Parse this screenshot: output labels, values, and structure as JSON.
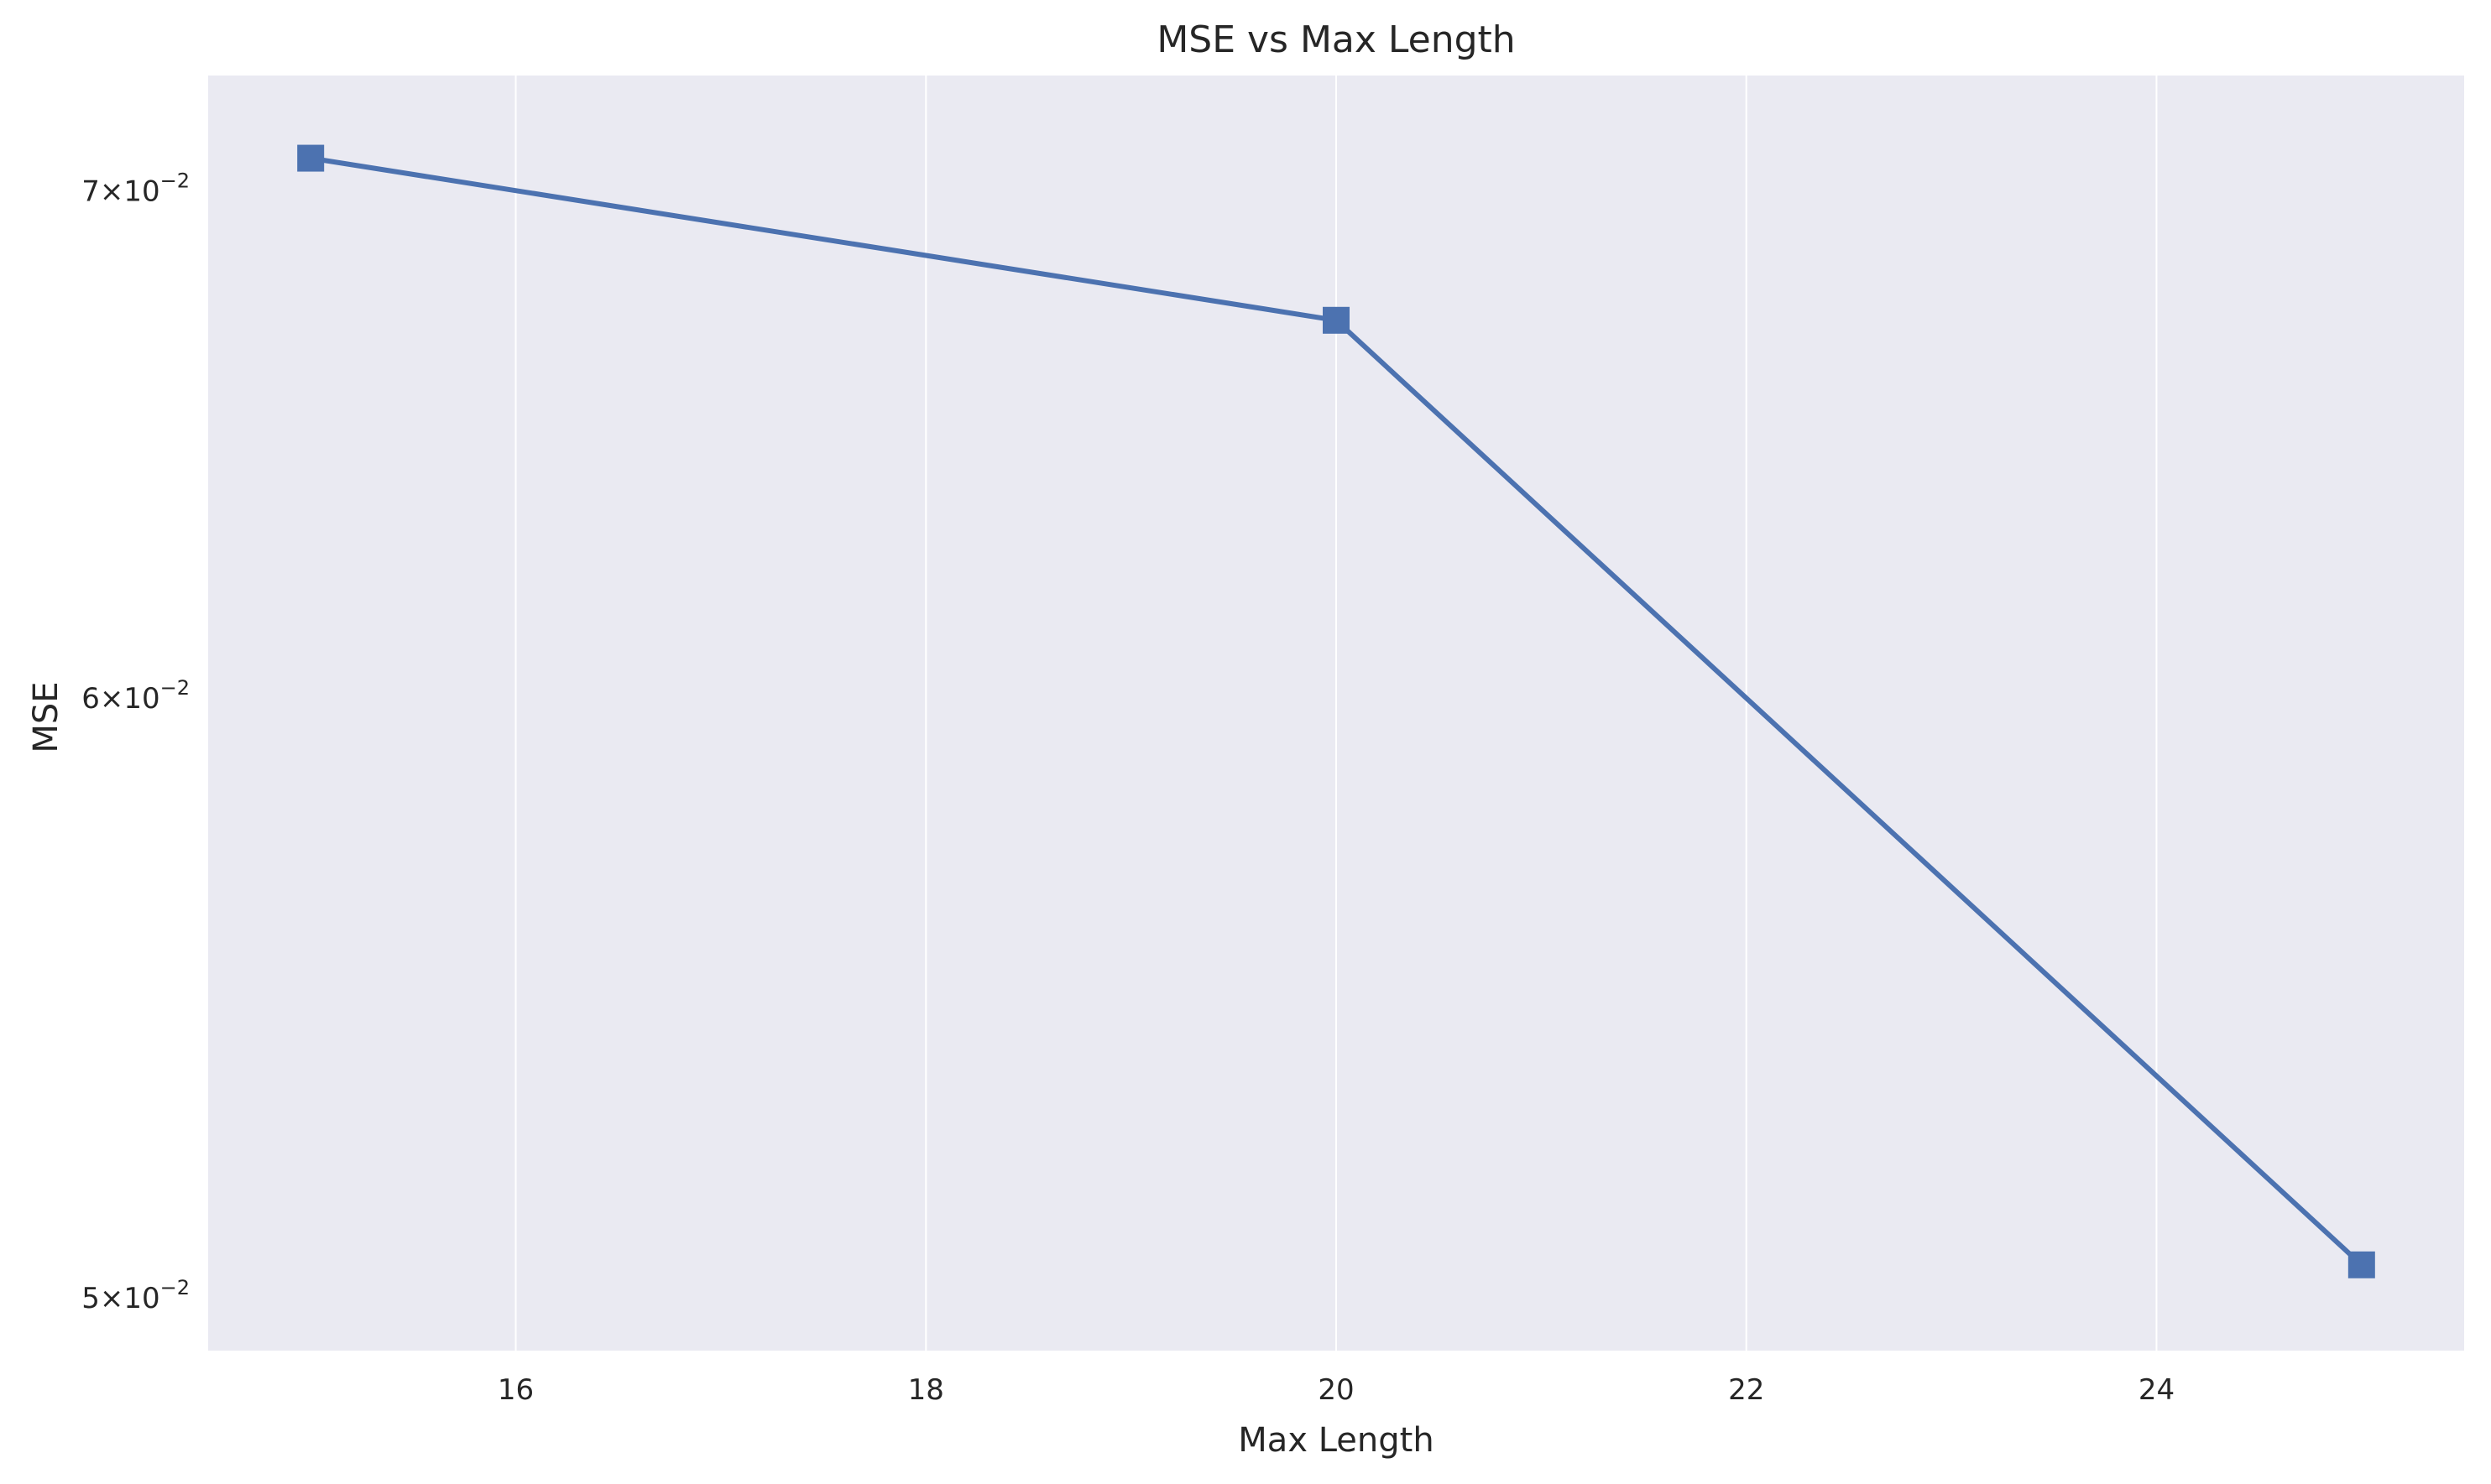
{
  "chart_data": {
    "type": "line",
    "title": "MSE vs Max Length",
    "xlabel": "Max Length",
    "ylabel": "MSE",
    "x_scale": "linear",
    "y_scale": "log",
    "xlim": [
      14.5,
      25.5
    ],
    "ylim": [
      0.0492,
      0.0725
    ],
    "grid": true,
    "legend": "none",
    "x_ticks": [
      {
        "value": 16,
        "label": "16"
      },
      {
        "value": 18,
        "label": "18"
      },
      {
        "value": 20,
        "label": "20"
      },
      {
        "value": 22,
        "label": "22"
      },
      {
        "value": 24,
        "label": "24"
      }
    ],
    "y_ticks": [
      {
        "value": 0.05,
        "mantissa": "5",
        "times": "×",
        "base": "10",
        "exponent": "−2"
      },
      {
        "value": 0.06,
        "mantissa": "6",
        "times": "×",
        "base": "10",
        "exponent": "−2"
      },
      {
        "value": 0.07,
        "mantissa": "7",
        "times": "×",
        "base": "10",
        "exponent": "−2"
      }
    ],
    "series": [
      {
        "color": "#4c72b0",
        "marker": "square",
        "x": [
          15,
          20,
          25
        ],
        "y": [
          0.0707,
          0.0673,
          0.0505
        ]
      }
    ]
  }
}
